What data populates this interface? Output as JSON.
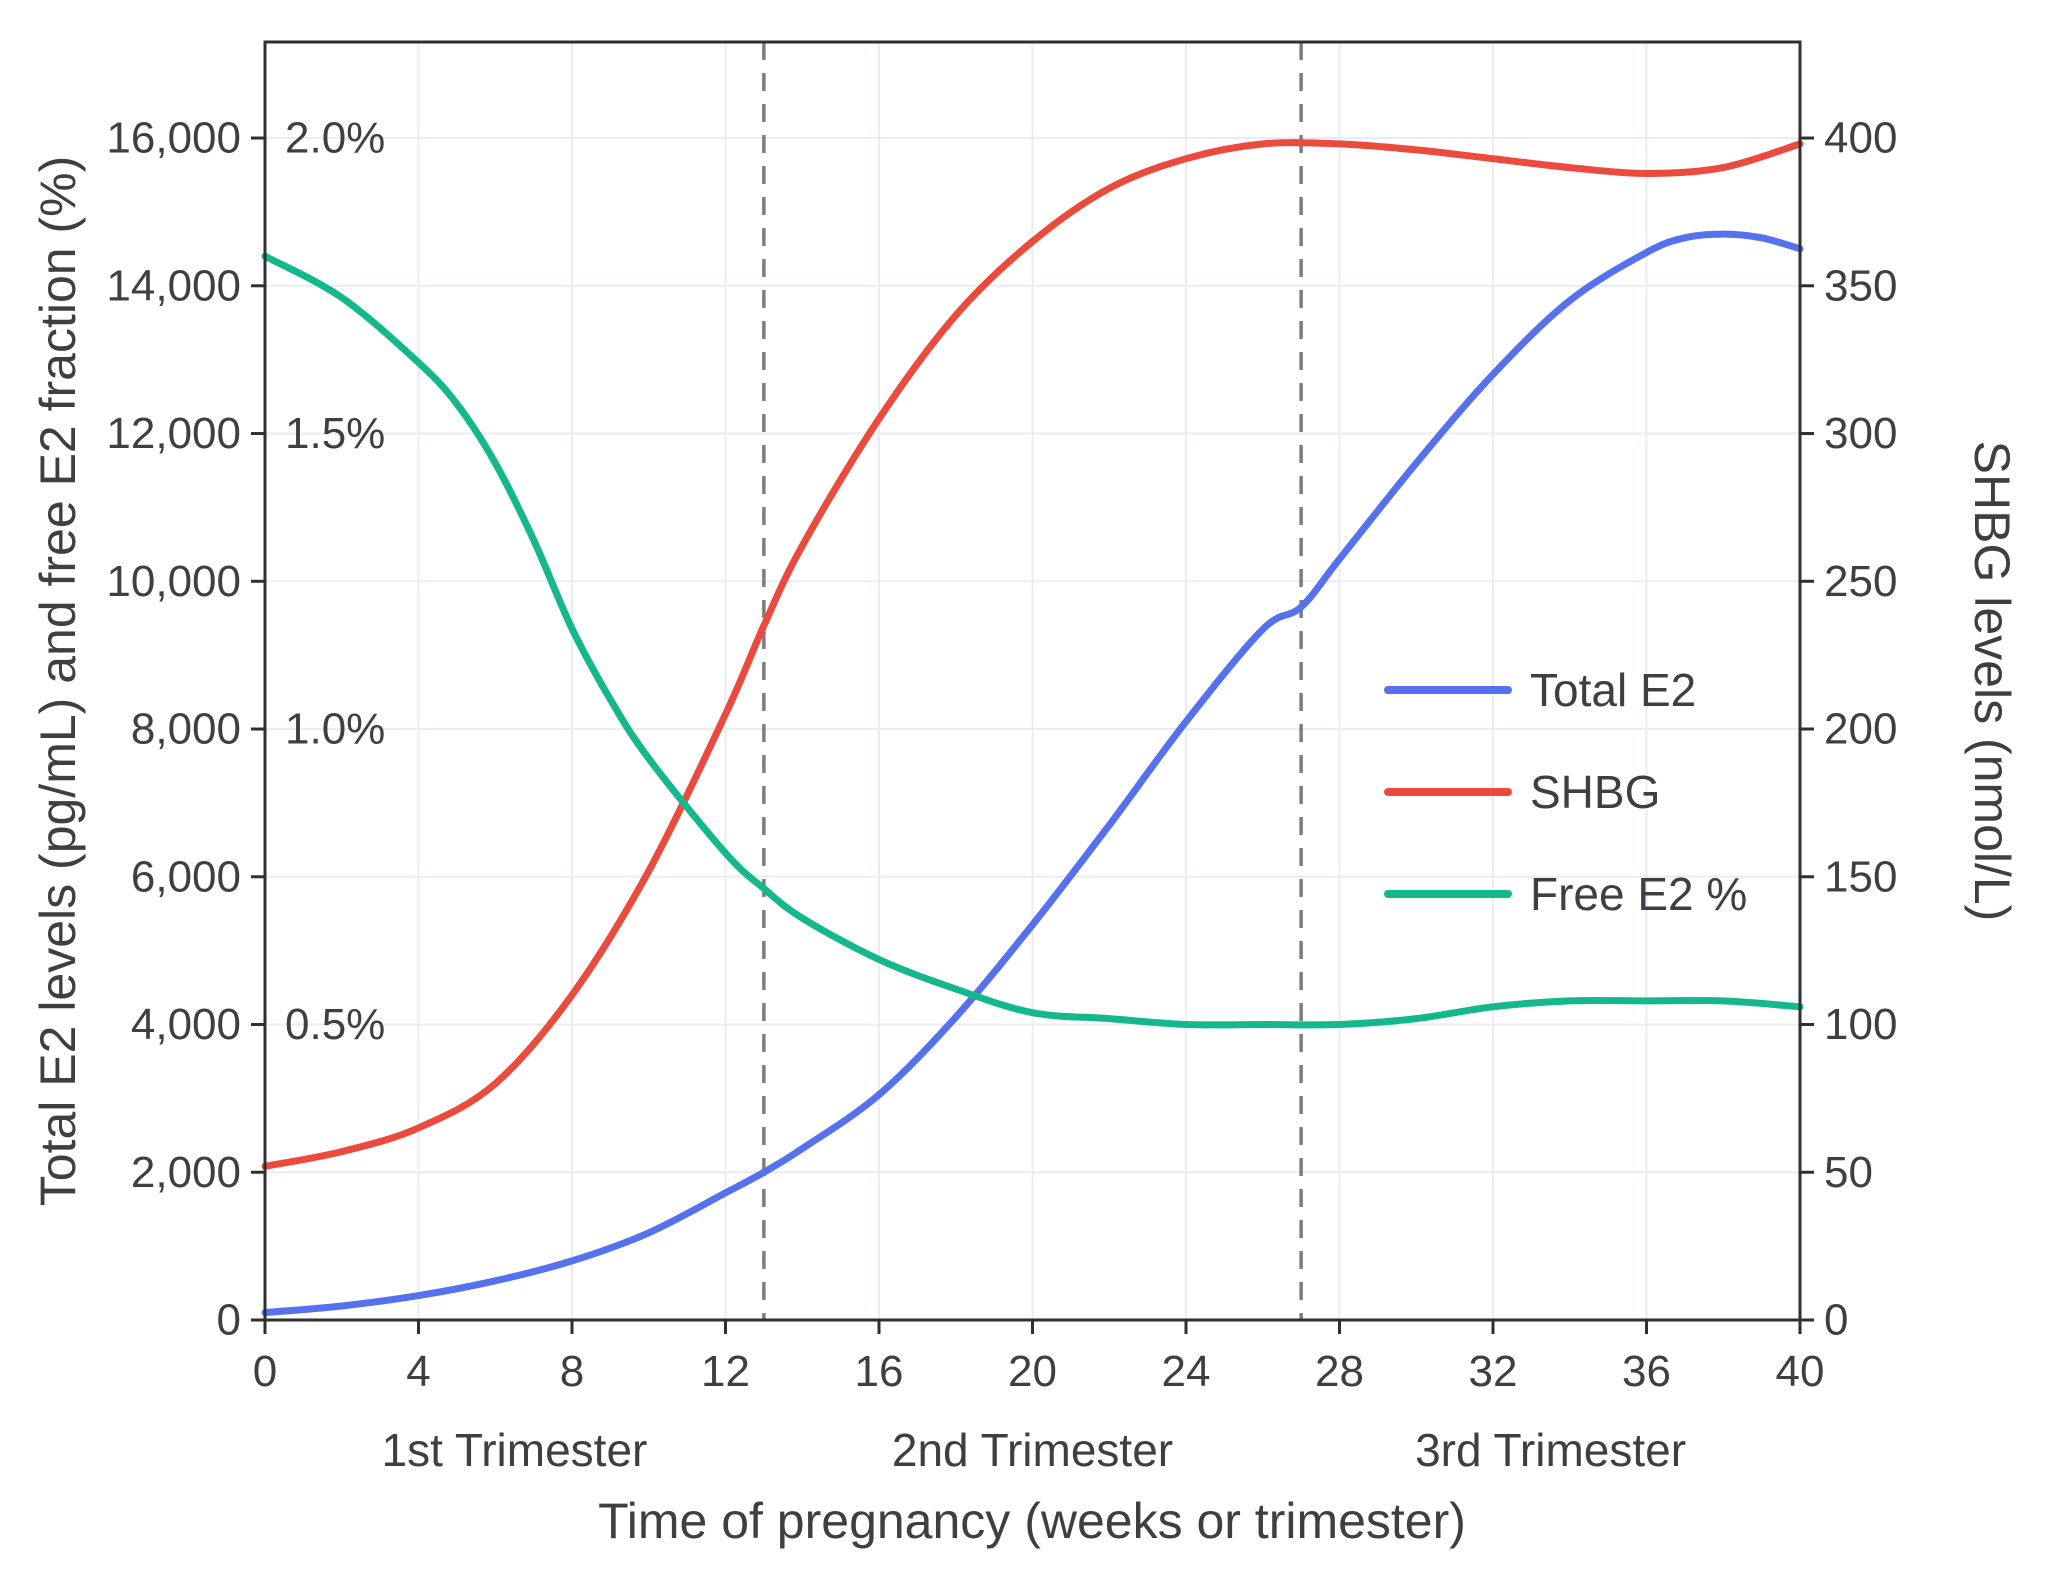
{
  "chart_data": {
    "type": "line",
    "title": "",
    "xlabel": "Time of pregnancy (weeks or trimester)",
    "ylabel_left": "Total E2 levels (pg/mL) and free E2 fraction (%)",
    "ylabel_right": "SHBG levels (nmol/L)",
    "xlim": [
      0,
      40
    ],
    "x_ticks": {
      "values": [
        0,
        4,
        8,
        12,
        16,
        20,
        24,
        28,
        32,
        36,
        40
      ],
      "labels": [
        "0",
        "4",
        "8",
        "12",
        "16",
        "20",
        "24",
        "28",
        "32",
        "36",
        "40"
      ]
    },
    "left_axis": {
      "range": [
        0,
        17300
      ],
      "tick_values": [
        0,
        2000,
        4000,
        6000,
        8000,
        10000,
        12000,
        14000,
        16000
      ],
      "tick_labels": [
        "0",
        "2,000",
        "4,000",
        "6,000",
        "8,000",
        "10,000",
        "12,000",
        "14,000",
        "16,000"
      ]
    },
    "right_axis": {
      "tick_values": [
        0,
        50,
        100,
        150,
        200,
        250,
        300,
        350,
        400
      ],
      "tick_labels": [
        "0",
        "50",
        "100",
        "150",
        "200",
        "250",
        "300",
        "350",
        "400"
      ],
      "left_units_per_right_unit": 40
    },
    "percent_axis": {
      "left_units_per_percent": 8000,
      "labels": [
        {
          "text": "0.5%",
          "value": 0.5
        },
        {
          "text": "1.0%",
          "value": 1.0
        },
        {
          "text": "1.5%",
          "value": 1.5
        },
        {
          "text": "2.0%",
          "value": 2.0
        }
      ]
    },
    "dividers_weeks": [
      13,
      27
    ],
    "trimesters": [
      {
        "label": "1st Trimester",
        "center_week": 6.5
      },
      {
        "label": "2nd Trimester",
        "center_week": 20
      },
      {
        "label": "3rd Trimester",
        "center_week": 33.5
      }
    ],
    "grid": true,
    "legend": {
      "position": "center-right",
      "entries": [
        {
          "label": "Total E2",
          "series": "total_e2"
        },
        {
          "label": "SHBG",
          "series": "shbg"
        },
        {
          "label": "Free E2 %",
          "series": "free_e2_pct"
        }
      ]
    },
    "series": [
      {
        "id": "total_e2",
        "name": "Total E2",
        "axis": "left",
        "units": "pg/mL",
        "color": "#5671ee",
        "x": [
          0,
          2,
          4,
          6,
          8,
          10,
          12,
          13,
          14,
          16,
          18,
          20,
          22,
          24,
          26,
          27,
          28,
          30,
          32,
          34,
          36,
          37,
          38,
          39,
          40
        ],
        "y": [
          100,
          190,
          330,
          530,
          800,
          1180,
          1720,
          2000,
          2320,
          3050,
          4100,
          5350,
          6700,
          8100,
          9350,
          9650,
          10300,
          11600,
          12800,
          13800,
          14450,
          14650,
          14700,
          14650,
          14500
        ]
      },
      {
        "id": "shbg",
        "name": "SHBG",
        "axis": "right",
        "units": "nmol/L",
        "color": "#ea4b3d",
        "x": [
          0,
          2,
          4,
          6,
          8,
          10,
          12,
          13,
          14,
          16,
          18,
          20,
          22,
          24,
          26,
          28,
          30,
          32,
          34,
          36,
          38,
          40
        ],
        "y": [
          52,
          57,
          65,
          80,
          110,
          152,
          205,
          235,
          262,
          305,
          340,
          365,
          383,
          393,
          398,
          398,
          396,
          393,
          390,
          388,
          390,
          398
        ]
      },
      {
        "id": "free_e2_pct",
        "name": "Free E2 %",
        "axis": "percent",
        "units": "%",
        "color": "#14b88c",
        "x": [
          0,
          2,
          4,
          5,
          6,
          7,
          8,
          9,
          10,
          12,
          13,
          14,
          16,
          18,
          20,
          22,
          24,
          26,
          28,
          30,
          32,
          34,
          36,
          38,
          40
        ],
        "y": [
          1.8,
          1.73,
          1.62,
          1.55,
          1.45,
          1.32,
          1.17,
          1.05,
          0.95,
          0.79,
          0.73,
          0.68,
          0.61,
          0.56,
          0.52,
          0.51,
          0.5,
          0.5,
          0.5,
          0.51,
          0.53,
          0.54,
          0.54,
          0.54,
          0.53
        ]
      }
    ],
    "colors": {
      "grid": "#e8edf5",
      "spine": "#2f2f2f",
      "divider": "#7d7d7d",
      "text": "#3f3f3f"
    }
  }
}
